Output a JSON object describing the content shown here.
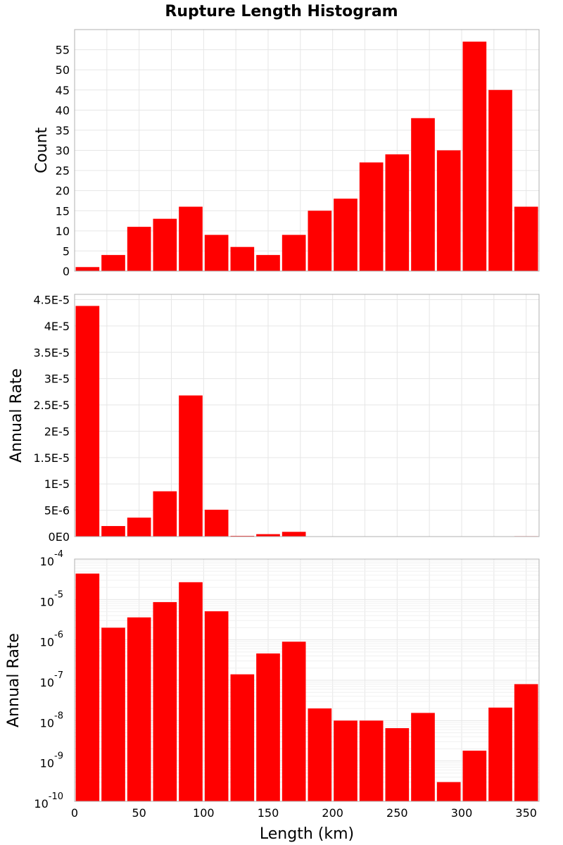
{
  "title": "Rupture Length Histogram",
  "colors": {
    "bar": "#ff0000",
    "background": "#ffffff"
  },
  "chart_data": [
    {
      "type": "bar",
      "ylabel": "Count",
      "xlim": [
        0,
        360
      ],
      "ylim": [
        0,
        60
      ],
      "yticks": [
        0,
        5,
        10,
        15,
        20,
        25,
        30,
        35,
        40,
        45,
        50,
        55
      ],
      "ytick_labels": [
        "0",
        "5",
        "10",
        "15",
        "20",
        "25",
        "30",
        "35",
        "40",
        "45",
        "50",
        "55"
      ],
      "x": [
        10,
        30,
        50,
        70,
        90,
        110,
        130,
        150,
        170,
        190,
        210,
        230,
        250,
        270,
        290,
        310,
        330,
        350
      ],
      "values": [
        1,
        4,
        11,
        13,
        16,
        9,
        6,
        4,
        9,
        15,
        18,
        27,
        29,
        38,
        30,
        57,
        45,
        16
      ]
    },
    {
      "type": "bar",
      "ylabel": "Annual Rate",
      "xlim": [
        0,
        360
      ],
      "ylim": [
        0,
        4.6e-05
      ],
      "yticks": [
        0,
        5e-06,
        1e-05,
        1.5e-05,
        2e-05,
        2.5e-05,
        3e-05,
        3.5e-05,
        4e-05,
        4.5e-05
      ],
      "ytick_labels": [
        "0E0",
        "5E-6",
        "1E-5",
        "1.5E-5",
        "2E-5",
        "2.5E-5",
        "3E-5",
        "3.5E-5",
        "4E-5",
        "4.5E-5"
      ],
      "x": [
        10,
        30,
        50,
        70,
        90,
        110,
        130,
        150,
        170,
        190,
        210,
        230,
        250,
        270,
        290,
        310,
        330,
        350
      ],
      "values": [
        4.38e-05,
        2e-06,
        3.6e-06,
        8.6e-06,
        2.68e-05,
        5.1e-06,
        1.4e-07,
        4.6e-07,
        9e-07,
        2e-08,
        1e-08,
        1e-08,
        6.5e-09,
        1.55e-08,
        3e-10,
        1.8e-09,
        2.1e-08,
        8e-08
      ]
    },
    {
      "type": "bar",
      "yscale": "log",
      "ylabel": "Annual Rate",
      "xlabel": "Length (km)",
      "xlim": [
        0,
        360
      ],
      "xticks": [
        0,
        50,
        100,
        150,
        200,
        250,
        300,
        350
      ],
      "xtick_labels": [
        "0",
        "50",
        "100",
        "150",
        "200",
        "250",
        "300",
        "350"
      ],
      "ylim": [
        1e-10,
        0.0001
      ],
      "ytick_exponents": [
        -10,
        -9,
        -8,
        -7,
        -6,
        -5,
        -4
      ],
      "ytick_base": "10",
      "ytick_labels": [
        "-10",
        "-9",
        "-8",
        "-7",
        "-6",
        "-5",
        "-4"
      ],
      "x": [
        10,
        30,
        50,
        70,
        90,
        110,
        130,
        150,
        170,
        190,
        210,
        230,
        250,
        270,
        290,
        310,
        330,
        350
      ],
      "values": [
        4.38e-05,
        2e-06,
        3.6e-06,
        8.6e-06,
        2.68e-05,
        5.1e-06,
        1.4e-07,
        4.6e-07,
        9e-07,
        2e-08,
        1e-08,
        1e-08,
        6.5e-09,
        1.55e-08,
        3e-10,
        1.8e-09,
        2.1e-08,
        8e-08
      ]
    }
  ]
}
